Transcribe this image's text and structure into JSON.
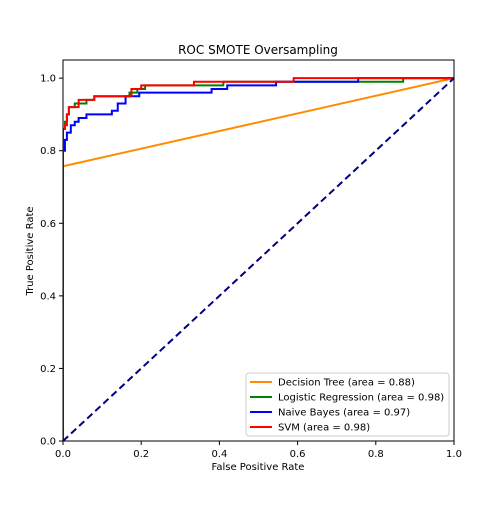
{
  "chart_data": {
    "type": "line",
    "title": "ROC SMOTE Oversampling",
    "xlabel": "False Positive Rate",
    "ylabel": "True Positive Rate",
    "xlim": [
      0.0,
      1.0
    ],
    "ylim": [
      0.0,
      1.05
    ],
    "xticks": [
      0.0,
      0.2,
      0.4,
      0.6,
      0.8,
      1.0
    ],
    "yticks": [
      0.0,
      0.2,
      0.4,
      0.6,
      0.8,
      1.0
    ],
    "xtick_labels": [
      "0.0",
      "0.2",
      "0.4",
      "0.6",
      "0.8",
      "1.0"
    ],
    "ytick_labels": [
      "0.0",
      "0.2",
      "0.4",
      "0.6",
      "0.8",
      "1.0"
    ],
    "grid": false,
    "legend_position": "lower-right",
    "series": [
      {
        "name": "Decision Tree (area = 0.88)",
        "color": "#ff8c00",
        "dash": false,
        "x": [
          0.0,
          0.0,
          1.0
        ],
        "y": [
          0.0,
          0.757,
          1.0
        ]
      },
      {
        "name": "Logistic Regression (area = 0.98)",
        "color": "#008000",
        "dash": false,
        "x": [
          0.0,
          0.0,
          0.005,
          0.005,
          0.01,
          0.01,
          0.015,
          0.015,
          0.03,
          0.03,
          0.06,
          0.06,
          0.08,
          0.08,
          0.17,
          0.17,
          0.19,
          0.19,
          0.21,
          0.21,
          0.41,
          0.41,
          0.87,
          0.87,
          1.0
        ],
        "y": [
          0.0,
          0.86,
          0.86,
          0.88,
          0.88,
          0.9,
          0.9,
          0.92,
          0.92,
          0.93,
          0.93,
          0.94,
          0.94,
          0.95,
          0.95,
          0.96,
          0.96,
          0.97,
          0.97,
          0.98,
          0.98,
          0.99,
          0.99,
          1.0,
          1.0
        ]
      },
      {
        "name": "Naive Bayes (area = 0.97)",
        "color": "#0000ff",
        "dash": false,
        "x": [
          0.0,
          0.0,
          0.005,
          0.005,
          0.01,
          0.01,
          0.02,
          0.02,
          0.03,
          0.03,
          0.04,
          0.04,
          0.06,
          0.06,
          0.125,
          0.125,
          0.14,
          0.14,
          0.16,
          0.16,
          0.195,
          0.195,
          0.38,
          0.38,
          0.42,
          0.42,
          0.545,
          0.545,
          0.755,
          0.755,
          1.0
        ],
        "y": [
          0.0,
          0.8,
          0.8,
          0.83,
          0.83,
          0.85,
          0.85,
          0.87,
          0.87,
          0.88,
          0.88,
          0.89,
          0.89,
          0.9,
          0.9,
          0.91,
          0.91,
          0.93,
          0.93,
          0.95,
          0.95,
          0.96,
          0.96,
          0.97,
          0.97,
          0.98,
          0.98,
          0.99,
          0.99,
          1.0,
          1.0
        ]
      },
      {
        "name": "SVM (area = 0.98)",
        "color": "#ff0000",
        "dash": false,
        "x": [
          0.0,
          0.0,
          0.005,
          0.005,
          0.01,
          0.01,
          0.015,
          0.015,
          0.04,
          0.04,
          0.07,
          0.07,
          0.08,
          0.08,
          0.175,
          0.175,
          0.2,
          0.2,
          0.335,
          0.335,
          0.59,
          0.59,
          0.755,
          0.755,
          1.0
        ],
        "y": [
          0.0,
          0.86,
          0.86,
          0.87,
          0.87,
          0.9,
          0.9,
          0.92,
          0.92,
          0.94,
          0.94,
          0.94,
          0.94,
          0.95,
          0.95,
          0.97,
          0.97,
          0.98,
          0.98,
          0.99,
          0.99,
          1.0,
          1.0,
          1.0,
          1.0
        ]
      }
    ],
    "reference_line": {
      "x": [
        0.0,
        1.0
      ],
      "y": [
        0.0,
        1.0
      ],
      "color": "#000080",
      "dash": true
    }
  }
}
